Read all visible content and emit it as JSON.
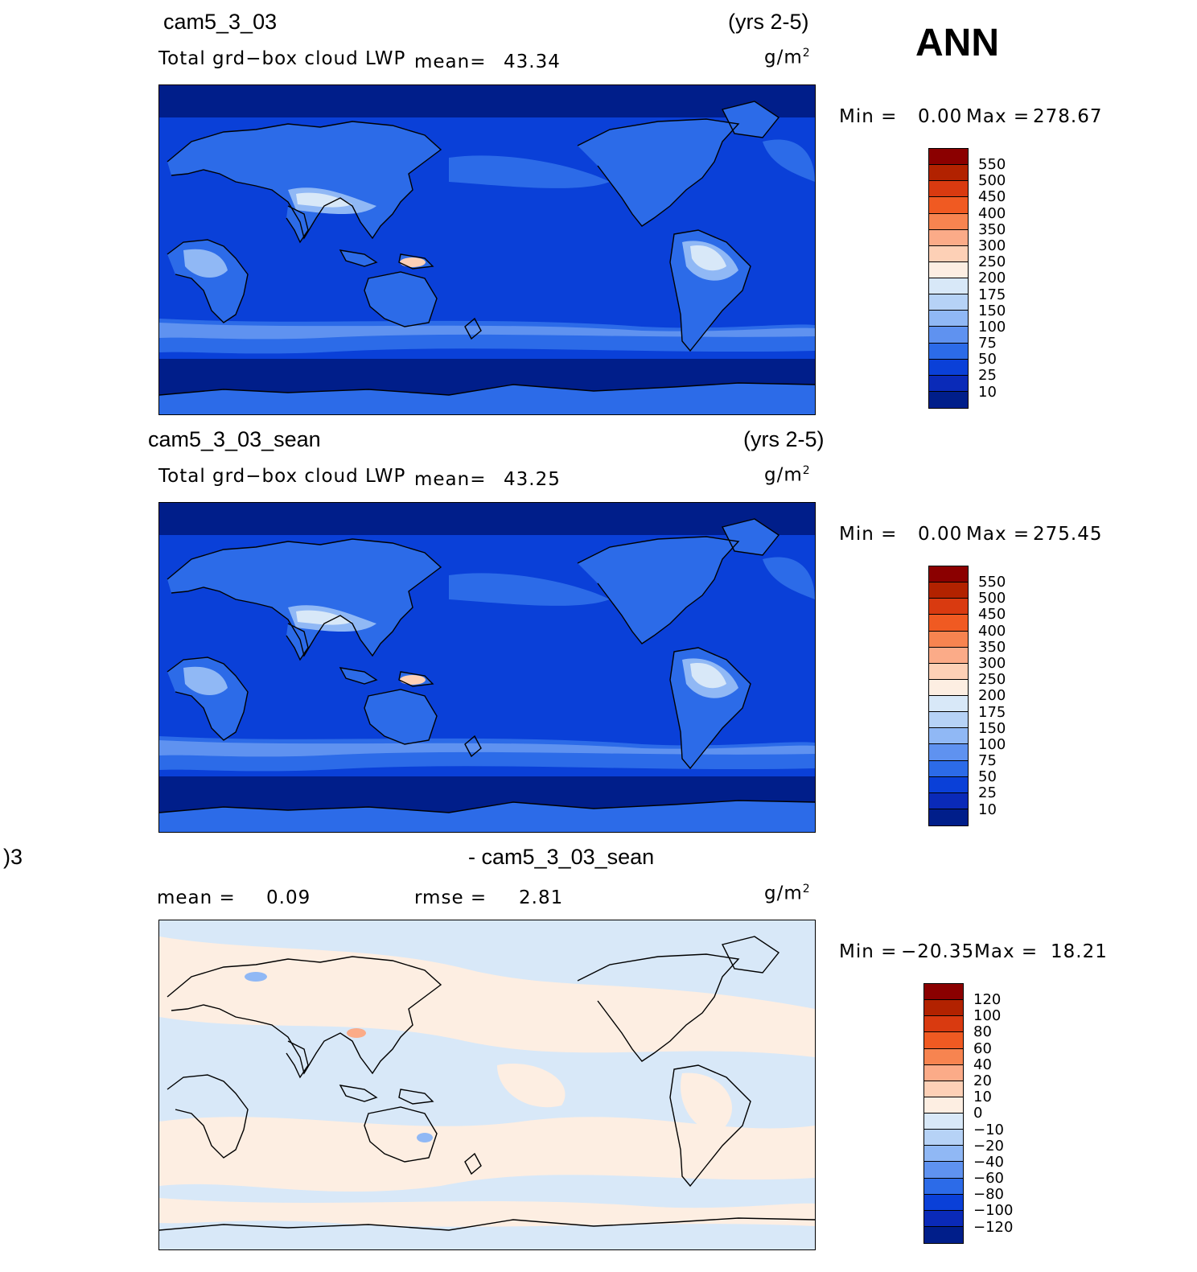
{
  "season": "ANN",
  "panels": [
    {
      "case": "cam5_3_03",
      "years": "(yrs 2-5)",
      "variable": "Total grd−box cloud LWP",
      "mean_label": "mean=",
      "mean_value": "43.34",
      "units_base": "g/m",
      "units_exp": "2",
      "min_label": "Min =",
      "min_value": "0.00",
      "max_label": "Max =",
      "max_value": "278.67"
    },
    {
      "case": "cam5_3_03_sean",
      "years": "(yrs 2-5)",
      "variable": "Total grd−box cloud LWP",
      "mean_label": "mean=",
      "mean_value": "43.25",
      "units_base": "g/m",
      "units_exp": "2",
      "min_label": "Min =",
      "min_value": "0.00",
      "max_label": "Max =",
      "max_value": "275.45"
    },
    {
      "case_left": ")3",
      "case": "- cam5_3_03_sean",
      "mean_label": "mean =",
      "mean_value": "0.09",
      "rmse_label": "rmse =",
      "rmse_value": "2.81",
      "units_base": "g/m",
      "units_exp": "2",
      "min_label": "Min =",
      "min_value": "−20.35",
      "max_label": "Max =",
      "max_value": "18.21"
    }
  ],
  "colorbar_abs": {
    "labels": [
      "550",
      "500",
      "450",
      "400",
      "350",
      "300",
      "250",
      "200",
      "175",
      "150",
      "100",
      "75",
      "50",
      "25",
      "10"
    ],
    "colors": [
      "#8b0000",
      "#b22200",
      "#d93a10",
      "#f05a22",
      "#f78450",
      "#fbab88",
      "#fdd0b6",
      "#fdeee2",
      "#d8e8f8",
      "#b6d2f6",
      "#90b8f5",
      "#5f92f0",
      "#2c6be8",
      "#0a40d8",
      "#0a2ab8",
      "#001e8a"
    ]
  },
  "colorbar_diff": {
    "labels": [
      "120",
      "100",
      "80",
      "60",
      "40",
      "20",
      "10",
      "0",
      "−10",
      "−20",
      "−40",
      "−60",
      "−80",
      "−100",
      "−120"
    ],
    "colors": [
      "#8b0000",
      "#b22200",
      "#d93a10",
      "#f05a22",
      "#f78450",
      "#fbab88",
      "#fdd0b6",
      "#fdeee2",
      "#d8e8f8",
      "#b6d2f6",
      "#90b8f5",
      "#5f92f0",
      "#2c6be8",
      "#0a40d8",
      "#0a2ab8",
      "#001e8a"
    ]
  },
  "field_colors": {
    "ocean_deep": "#001e8a",
    "ocean": "#0a40d8",
    "ocean_mid": "#2c6be8",
    "band_light": "#5f92f0",
    "land_light": "#90b8f5",
    "land_lighter": "#d8e8f8",
    "diff_pos": "#fdeee2",
    "diff_neg": "#d8e8f8",
    "diff_pos2": "#fbab88",
    "diff_neg2": "#90b8f5"
  }
}
